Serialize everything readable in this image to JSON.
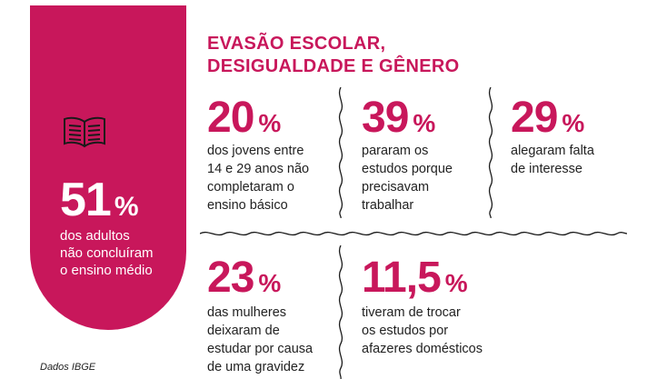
{
  "title": {
    "line1": "EVASÃO ESCOLAR,",
    "line2": "DESIGUALDADE E GÊNERO"
  },
  "highlight": {
    "value": "51",
    "unit": "%",
    "lines": [
      "dos adultos",
      "não concluíram",
      "o ensino médio"
    ],
    "color": "#c8175b"
  },
  "stats": [
    {
      "value": "20",
      "unit": "%",
      "lines": [
        "dos jovens entre",
        "14 e 29 anos não",
        "completaram o",
        "ensino básico"
      ]
    },
    {
      "value": "39",
      "unit": "%",
      "lines": [
        "pararam os",
        "estudos porque",
        "precisavam",
        "trabalhar"
      ]
    },
    {
      "value": "29",
      "unit": "%",
      "lines": [
        "alegaram falta",
        "de interesse"
      ]
    },
    {
      "value": "23",
      "unit": "%",
      "lines": [
        "das mulheres",
        "deixaram de",
        "estudar por causa",
        "de uma gravidez"
      ]
    },
    {
      "value": "11,5",
      "unit": "%",
      "lines": [
        "tiveram de trocar",
        "os estudos por",
        "afazeres domésticos"
      ]
    }
  ],
  "source": "Dados IBGE"
}
